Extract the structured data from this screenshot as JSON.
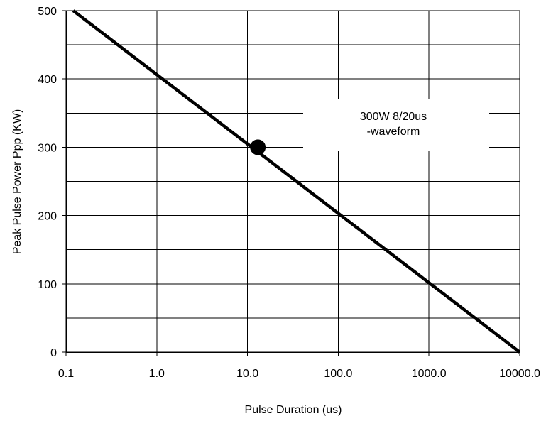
{
  "chart_data": {
    "type": "line",
    "title": "",
    "xlabel": "Pulse Duration (us)",
    "ylabel": "Peak Pulse Power Ppp (KW)",
    "x_scale": "log",
    "xlim": [
      0.1,
      10000
    ],
    "ylim": [
      0,
      500
    ],
    "x_ticks": [
      0.1,
      1,
      10,
      100,
      1000,
      10000
    ],
    "x_tick_labels": [
      "0.1",
      "1.0",
      "10.0",
      "100.0",
      "1000.0",
      "10000.0"
    ],
    "y_ticks": [
      0,
      100,
      200,
      300,
      400,
      500
    ],
    "y_tick_labels": [
      "0",
      "100",
      "200",
      "300",
      "400",
      "500"
    ],
    "y_minor_gridlines": [
      50,
      150,
      250,
      350,
      450
    ],
    "grid": true,
    "series": [
      {
        "x": [
          0.12,
          10000
        ],
        "y": [
          500,
          0
        ],
        "color": "#000000"
      }
    ],
    "marker": {
      "x": 13,
      "y": 300
    },
    "annotation": {
      "line1": "300W 8/20us",
      "line2": "-waveform"
    }
  }
}
